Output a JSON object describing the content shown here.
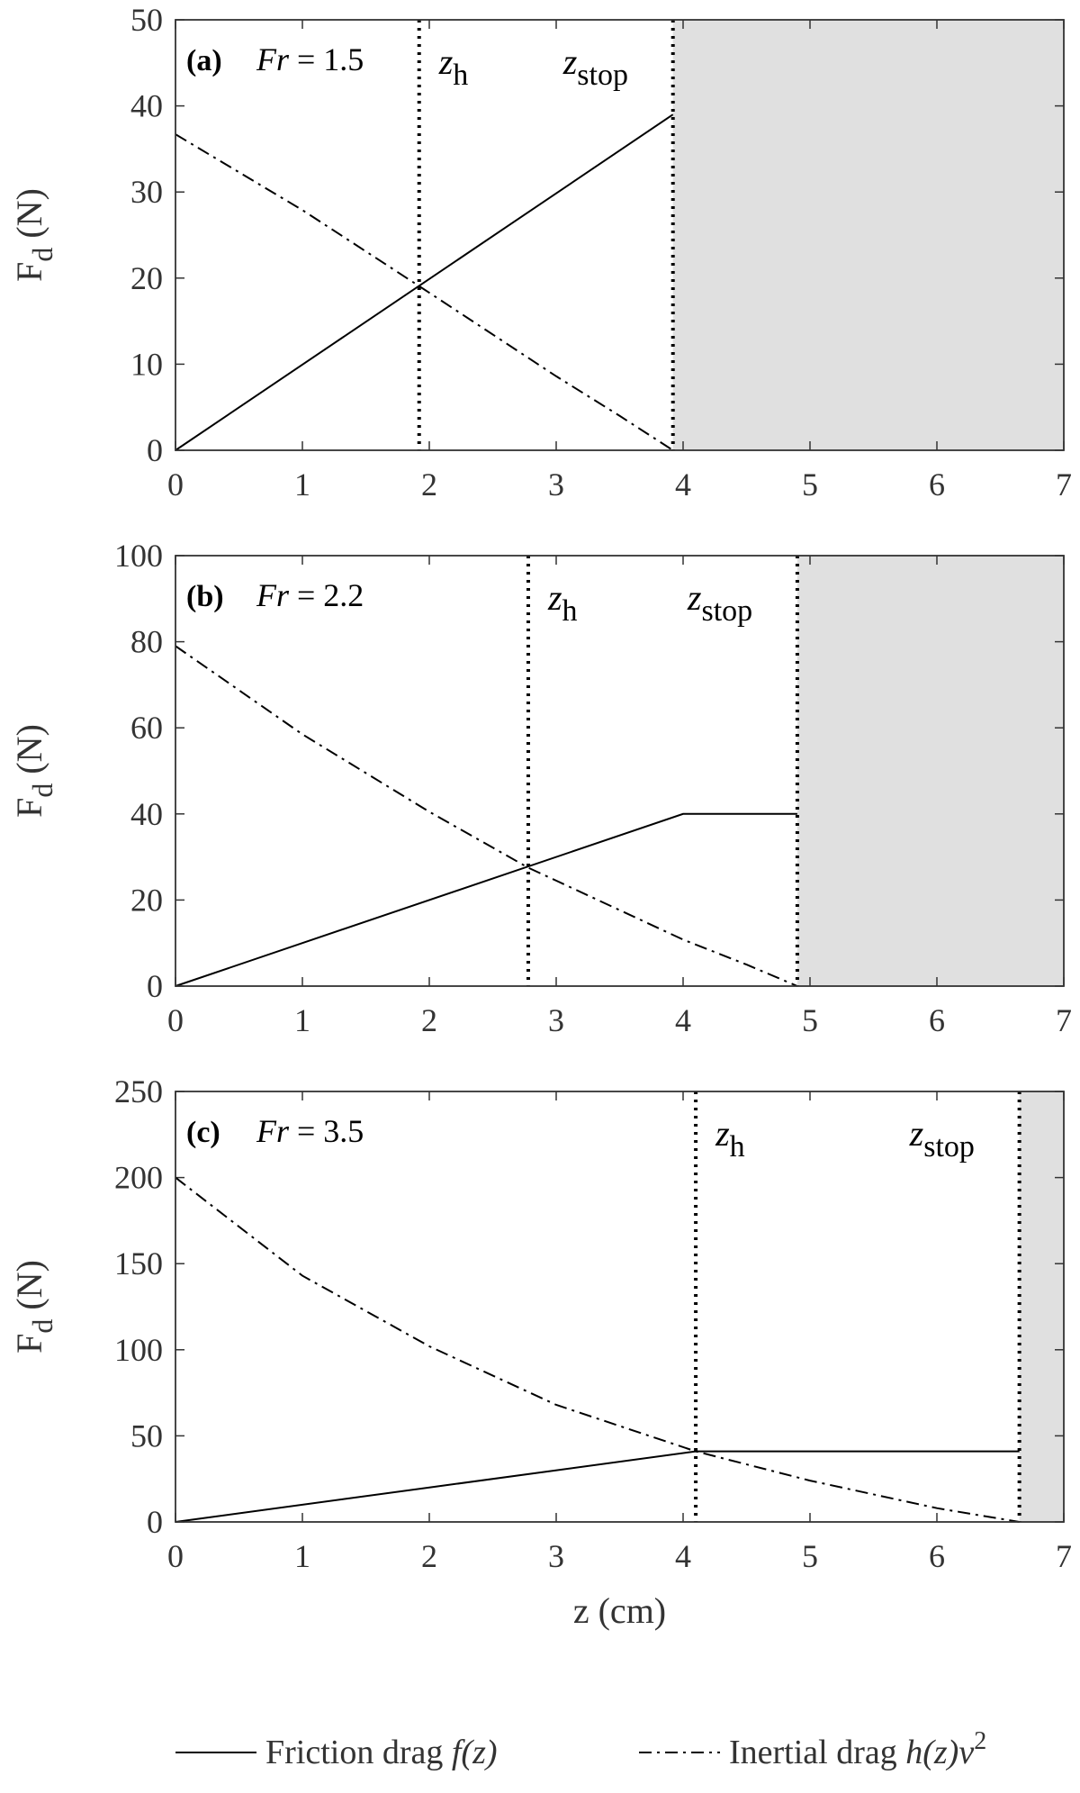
{
  "chart_data": [
    {
      "type": "line",
      "panel_label": "(a)",
      "fr_label": "Fr",
      "fr_value": "= 1.5",
      "ylabel_main": "F",
      "ylabel_sub": "d",
      "ylabel_unit": "(N)",
      "xlim": [
        0,
        7
      ],
      "ylim": [
        0,
        50
      ],
      "yticks": [
        0,
        10,
        20,
        30,
        40,
        50
      ],
      "xticks": [
        0,
        1,
        2,
        3,
        4,
        5,
        6,
        7
      ],
      "z_h": 1.92,
      "z_stop": 3.92,
      "z_h_label": "z",
      "z_h_sub": "h",
      "z_stop_label": "z",
      "z_stop_sub": "stop",
      "grid": false,
      "series": [
        {
          "name": "Friction drag f(z)",
          "style": "solid",
          "x": [
            0,
            3.92
          ],
          "y": [
            0,
            39
          ]
        },
        {
          "name": "Inertial drag h(z)v^2",
          "style": "dashdot",
          "x": [
            0,
            1,
            2,
            3,
            3.5,
            3.92
          ],
          "y": [
            36.7,
            27.9,
            18.3,
            8.6,
            4.0,
            0
          ]
        }
      ]
    },
    {
      "type": "line",
      "panel_label": "(b)",
      "fr_label": "Fr",
      "fr_value": "= 2.2",
      "ylabel_main": "F",
      "ylabel_sub": "d",
      "ylabel_unit": "(N)",
      "xlim": [
        0,
        7
      ],
      "ylim": [
        0,
        100
      ],
      "yticks": [
        0,
        20,
        40,
        60,
        80,
        100
      ],
      "xticks": [
        0,
        1,
        2,
        3,
        4,
        5,
        6,
        7
      ],
      "z_h": 2.78,
      "z_stop": 4.9,
      "z_h_label": "z",
      "z_h_sub": "h",
      "z_stop_label": "z",
      "z_stop_sub": "stop",
      "grid": false,
      "series": [
        {
          "name": "Friction drag f(z)",
          "style": "solid",
          "x": [
            0,
            4.0,
            4.9
          ],
          "y": [
            0,
            40,
            40
          ]
        },
        {
          "name": "Inertial drag h(z)v^2",
          "style": "dashdot",
          "x": [
            0,
            1,
            2,
            2.78,
            3,
            4,
            4.5,
            4.9
          ],
          "y": [
            79,
            58.5,
            40.5,
            27.5,
            24.5,
            10.8,
            5.0,
            0
          ]
        }
      ]
    },
    {
      "type": "line",
      "panel_label": "(c)",
      "fr_label": "Fr",
      "fr_value": "= 3.5",
      "ylabel_main": "F",
      "ylabel_sub": "d",
      "ylabel_unit": "(N)",
      "xlabel": "z (cm)",
      "xlim": [
        0,
        7
      ],
      "ylim": [
        0,
        250
      ],
      "yticks": [
        0,
        50,
        100,
        150,
        200,
        250
      ],
      "xticks": [
        0,
        1,
        2,
        3,
        4,
        5,
        6,
        7
      ],
      "z_h": 4.1,
      "z_stop": 6.65,
      "z_h_label": "z",
      "z_h_sub": "h",
      "z_stop_label": "z",
      "z_stop_sub": "stop",
      "grid": false,
      "series": [
        {
          "name": "Friction drag f(z)",
          "style": "solid",
          "x": [
            0,
            4.1,
            6.65
          ],
          "y": [
            0,
            41,
            41
          ]
        },
        {
          "name": "Inertial drag h(z)v^2",
          "style": "dashdot",
          "x": [
            0,
            1,
            2,
            3,
            4.1,
            5,
            6,
            6.65
          ],
          "y": [
            200,
            143,
            102,
            68,
            41,
            24,
            8,
            0
          ]
        }
      ]
    }
  ],
  "legend": {
    "position": "bottom",
    "items": [
      {
        "style": "solid",
        "text": "Friction drag ",
        "italic": "f(z)",
        "sup": ""
      },
      {
        "style": "dashdot",
        "text": "Inertial drag ",
        "italic": "h(z)v",
        "sup": "2"
      }
    ]
  },
  "colors": {
    "line": "#000000",
    "shade": "#e0e0e0",
    "axis": "#333333"
  }
}
